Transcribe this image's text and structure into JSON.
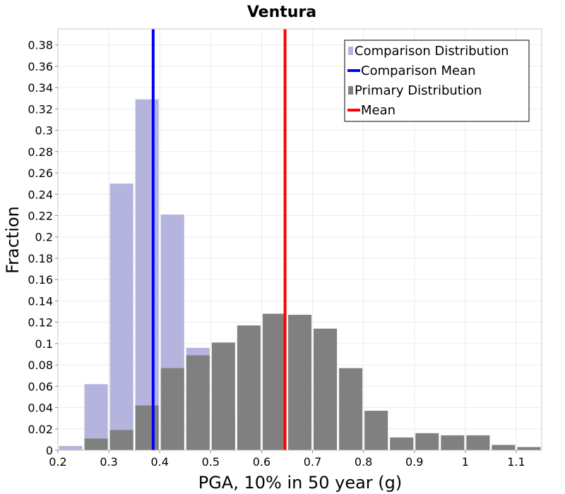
{
  "chart_data": {
    "type": "bar",
    "title": "Ventura",
    "xlabel": "PGA, 10% in 50 year (g)",
    "ylabel": "Fraction",
    "xlim": [
      0.2,
      1.15
    ],
    "ylim": [
      0,
      0.395
    ],
    "xticks": [
      "0.2",
      "0.3",
      "0.4",
      "0.5",
      "0.6",
      "0.7",
      "0.8",
      "0.9",
      "1",
      "1.1"
    ],
    "yticks": [
      "0",
      "0.02",
      "0.04",
      "0.06",
      "0.08",
      "0.1",
      "0.12",
      "0.14",
      "0.16",
      "0.18",
      "0.2",
      "0.22",
      "0.24",
      "0.26",
      "0.28",
      "0.3",
      "0.32",
      "0.34",
      "0.36",
      "0.38"
    ],
    "grid": true,
    "bin_width": 0.05,
    "series": [
      {
        "name": "Comparison Distribution",
        "color": "#b4b4de",
        "bins": [
          {
            "x": 0.2,
            "y": 0.004
          },
          {
            "x": 0.25,
            "y": 0.062
          },
          {
            "x": 0.3,
            "y": 0.25
          },
          {
            "x": 0.35,
            "y": 0.329
          },
          {
            "x": 0.4,
            "y": 0.221
          },
          {
            "x": 0.45,
            "y": 0.096
          },
          {
            "x": 0.5,
            "y": 0.035
          },
          {
            "x": 0.55,
            "y": 0.003
          }
        ]
      },
      {
        "name": "Primary Distribution",
        "color": "#808080",
        "bins": [
          {
            "x": 0.25,
            "y": 0.011
          },
          {
            "x": 0.3,
            "y": 0.019
          },
          {
            "x": 0.35,
            "y": 0.042
          },
          {
            "x": 0.4,
            "y": 0.077
          },
          {
            "x": 0.45,
            "y": 0.089
          },
          {
            "x": 0.5,
            "y": 0.101
          },
          {
            "x": 0.55,
            "y": 0.117
          },
          {
            "x": 0.6,
            "y": 0.128
          },
          {
            "x": 0.65,
            "y": 0.127
          },
          {
            "x": 0.7,
            "y": 0.114
          },
          {
            "x": 0.75,
            "y": 0.077
          },
          {
            "x": 0.8,
            "y": 0.037
          },
          {
            "x": 0.85,
            "y": 0.012
          },
          {
            "x": 0.9,
            "y": 0.016
          },
          {
            "x": 0.95,
            "y": 0.014
          },
          {
            "x": 1.0,
            "y": 0.014
          },
          {
            "x": 1.05,
            "y": 0.005
          },
          {
            "x": 1.1,
            "y": 0.003
          }
        ]
      }
    ],
    "vlines": [
      {
        "name": "Comparison Mean",
        "x": 0.387,
        "color": "#0000ff"
      },
      {
        "name": "Mean",
        "x": 0.646,
        "color": "#ff0000"
      }
    ],
    "legend": {
      "position": "top-right",
      "entries": [
        {
          "label": "Comparison Distribution",
          "kind": "bar",
          "color": "#b4b4de"
        },
        {
          "label": "Comparison Mean",
          "kind": "line",
          "color": "#0000ff"
        },
        {
          "label": "Primary Distribution",
          "kind": "bar",
          "color": "#808080"
        },
        {
          "label": "Mean",
          "kind": "line",
          "color": "#ff0000"
        }
      ]
    }
  }
}
